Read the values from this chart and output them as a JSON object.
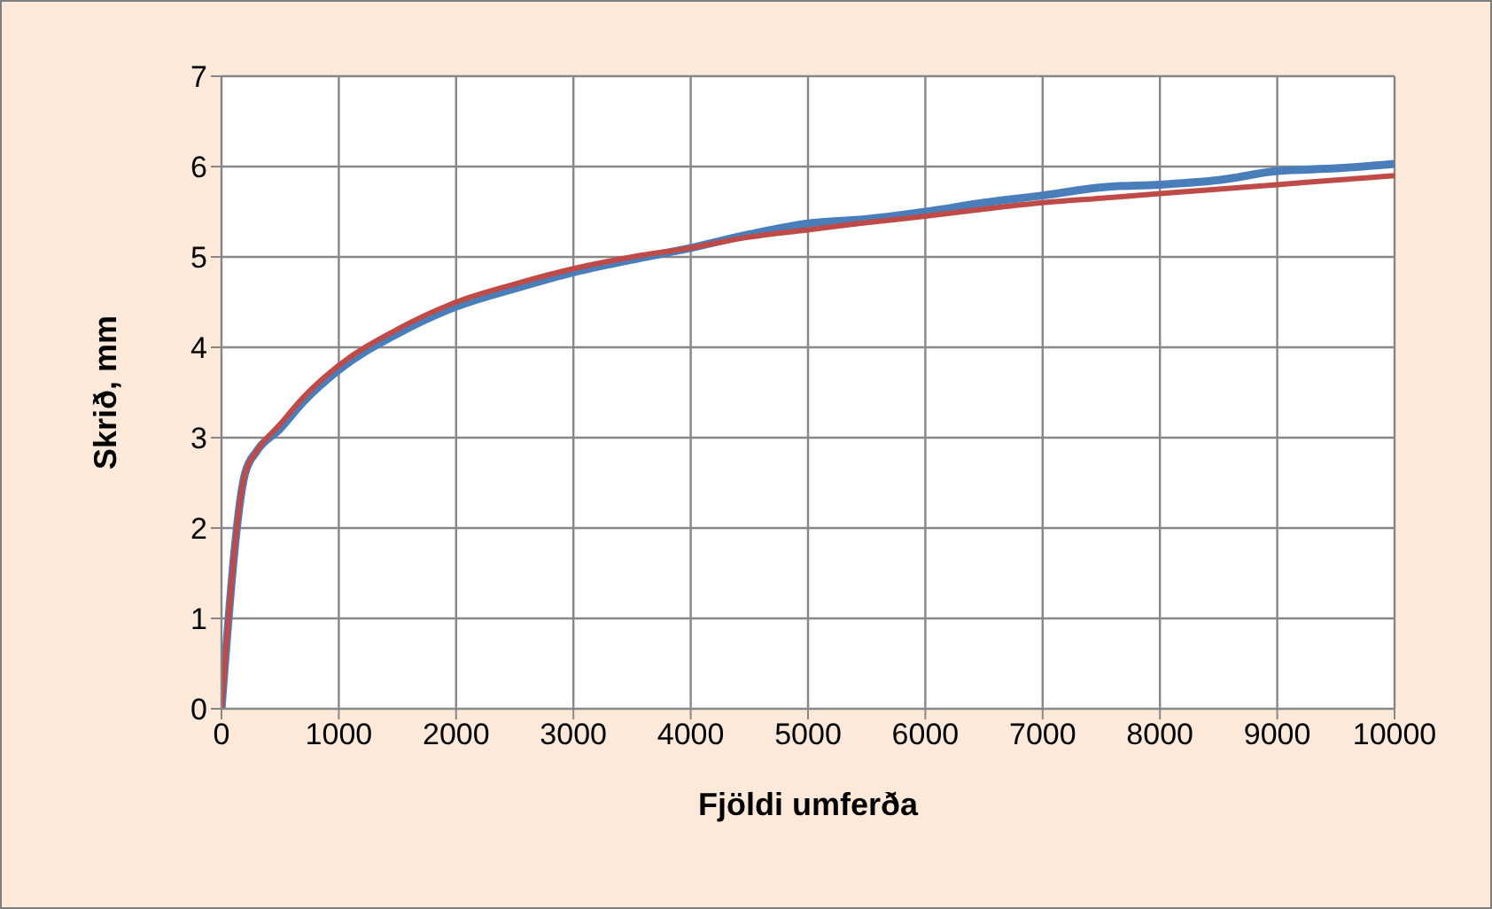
{
  "chart_data": {
    "type": "line",
    "xlabel": "Fjöldi umferða",
    "ylabel": "Skrið, mm",
    "x": [
      0,
      200,
      300,
      500,
      700,
      1000,
      1500,
      2000,
      2500,
      3000,
      3500,
      4000,
      4500,
      5000,
      5500,
      6000,
      6500,
      7000,
      7500,
      8000,
      8500,
      9000,
      9500,
      10000
    ],
    "series": [
      {
        "color": "#4a7ebb",
        "values": [
          0,
          2.6,
          2.85,
          3.1,
          3.4,
          3.75,
          4.15,
          4.45,
          4.65,
          4.83,
          4.97,
          5.1,
          5.25,
          5.37,
          5.42,
          5.5,
          5.6,
          5.68,
          5.77,
          5.8,
          5.85,
          5.95,
          5.98,
          6.03
        ]
      },
      {
        "color": "#be4b48",
        "values": [
          0,
          2.6,
          2.85,
          3.15,
          3.45,
          3.8,
          4.2,
          4.5,
          4.7,
          4.87,
          5.0,
          5.1,
          5.22,
          5.3,
          5.38,
          5.45,
          5.53,
          5.6,
          5.65,
          5.7,
          5.75,
          5.8,
          5.85,
          5.9
        ]
      }
    ],
    "xlim": [
      0,
      10000
    ],
    "xticks": [
      0,
      1000,
      2000,
      3000,
      4000,
      5000,
      6000,
      7000,
      8000,
      9000,
      10000
    ],
    "ylim": [
      0,
      7
    ],
    "yticks": [
      0,
      1,
      2,
      3,
      4,
      5,
      6,
      7
    ],
    "grid": true,
    "marker": "none",
    "line_style": "solid"
  }
}
